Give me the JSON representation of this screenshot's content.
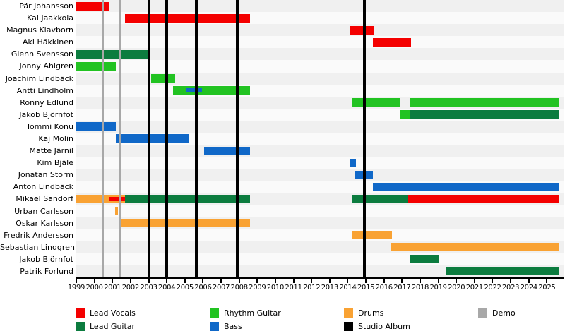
{
  "colors": {
    "lead_vocals": "#f40000",
    "lead_guitar": "#0c7c3f",
    "rhythm_guitar": "#22c322",
    "bass": "#1068c8",
    "drums": "#f9a233",
    "studio_album": "#000000",
    "demo": "#a8a8a8",
    "row_stripe_dark": "#f0f0f0",
    "row_stripe_light": "#fafafa"
  },
  "chart_data": {
    "type": "timeline",
    "x_axis": {
      "min_year": 1999,
      "max_year": 2025.9,
      "tick_years": [
        1999,
        2000,
        2001,
        2002,
        2003,
        2004,
        2005,
        2006,
        2007,
        2008,
        2009,
        2010,
        2011,
        2012,
        2013,
        2014,
        2015,
        2016,
        2017,
        2018,
        2019,
        2020,
        2021,
        2022,
        2023,
        2024,
        2025
      ]
    },
    "rows": [
      {
        "name": "Pär Johansson",
        "segments": [
          {
            "role": "lead_vocals",
            "from": 1999.0,
            "to": 2000.8
          }
        ]
      },
      {
        "name": "Kai Jaakkola",
        "segments": [
          {
            "role": "lead_vocals",
            "from": 2001.7,
            "to": 2008.6
          }
        ]
      },
      {
        "name": "Magnus Klavborn",
        "segments": [
          {
            "role": "lead_vocals",
            "from": 2014.15,
            "to": 2015.45
          }
        ]
      },
      {
        "name": "Aki Häkkinen",
        "segments": [
          {
            "role": "lead_vocals",
            "from": 2015.4,
            "to": 2017.5
          }
        ]
      },
      {
        "name": "Glenn Svensson",
        "segments": [
          {
            "role": "lead_guitar",
            "from": 1999.0,
            "to": 2003.0
          }
        ]
      },
      {
        "name": "Jonny Ahlgren",
        "segments": [
          {
            "role": "rhythm_guitar",
            "from": 1999.0,
            "to": 2001.2
          }
        ]
      },
      {
        "name": "Joachim Lindbäck",
        "segments": [
          {
            "role": "rhythm_guitar",
            "from": 2003.15,
            "to": 2004.45
          }
        ]
      },
      {
        "name": "Antti Lindholm",
        "segments": [
          {
            "role": "rhythm_guitar",
            "from": 2004.35,
            "to": 2008.6
          },
          {
            "role": "bass",
            "from": 2005.1,
            "to": 2005.95,
            "overlay": true
          }
        ]
      },
      {
        "name": "Ronny Edlund",
        "segments": [
          {
            "role": "rhythm_guitar",
            "from": 2014.2,
            "to": 2016.9
          },
          {
            "role": "rhythm_guitar",
            "from": 2017.4,
            "to": 2025.7
          }
        ]
      },
      {
        "name": "Jakob Björnfot",
        "segments": [
          {
            "role": "rhythm_guitar",
            "from": 2016.9,
            "to": 2017.4
          },
          {
            "role": "lead_guitar",
            "from": 2017.4,
            "to": 2025.7
          }
        ]
      },
      {
        "name": "Tommi Konu",
        "segments": [
          {
            "role": "bass",
            "from": 1999.0,
            "to": 2001.2
          }
        ]
      },
      {
        "name": "Kaj Molin",
        "segments": [
          {
            "role": "bass",
            "from": 2001.2,
            "to": 2005.2
          }
        ]
      },
      {
        "name": "Matte Järnil",
        "segments": [
          {
            "role": "bass",
            "from": 2006.05,
            "to": 2008.6
          }
        ]
      },
      {
        "name": "Kim Bjäle",
        "segments": [
          {
            "role": "bass",
            "from": 2014.15,
            "to": 2014.45
          }
        ]
      },
      {
        "name": "Jonatan Storm",
        "segments": [
          {
            "role": "bass",
            "from": 2014.4,
            "to": 2015.4
          }
        ]
      },
      {
        "name": "Anton Lindbäck",
        "segments": [
          {
            "role": "bass",
            "from": 2015.4,
            "to": 2025.7
          }
        ]
      },
      {
        "name": "Mikael Sandorf",
        "segments": [
          {
            "role": "drums",
            "from": 1999.0,
            "to": 2001.7
          },
          {
            "role": "lead_vocals",
            "from": 2000.85,
            "to": 2001.7,
            "overlay": true
          },
          {
            "role": "lead_guitar",
            "from": 2001.7,
            "to": 2008.6
          },
          {
            "role": "lead_guitar",
            "from": 2014.2,
            "to": 2017.35
          },
          {
            "role": "lead_vocals",
            "from": 2017.35,
            "to": 2025.7
          }
        ]
      },
      {
        "name": "Urban Carlsson",
        "segments": [
          {
            "role": "drums",
            "from": 2001.15,
            "to": 2001.3
          }
        ]
      },
      {
        "name": "Oskar Karlsson",
        "segments": [
          {
            "role": "drums",
            "from": 2001.5,
            "to": 2008.6
          }
        ]
      },
      {
        "name": "Fredrik Andersson",
        "segments": [
          {
            "role": "drums",
            "from": 2014.2,
            "to": 2016.45
          }
        ]
      },
      {
        "name": "Sebastian Lindgren",
        "segments": [
          {
            "role": "drums",
            "from": 2016.4,
            "to": 2025.7
          }
        ]
      },
      {
        "name": "Jakob Björnfot",
        "segments": [
          {
            "role": "lead_guitar",
            "from": 2017.4,
            "to": 2019.05
          }
        ]
      },
      {
        "name": "Patrik Forlund",
        "segments": [
          {
            "role": "lead_guitar",
            "from": 2019.45,
            "to": 2025.7
          }
        ]
      }
    ],
    "events": {
      "studio_album_years": [
        2003.0,
        2004.0,
        2005.65,
        2007.9,
        2014.9
      ],
      "demo_years": [
        2000.45,
        2001.4
      ]
    },
    "legend": [
      {
        "label": "Lead Vocals",
        "role": "lead_vocals"
      },
      {
        "label": "Lead Guitar",
        "role": "lead_guitar"
      },
      {
        "label": "Rhythm Guitar",
        "role": "rhythm_guitar"
      },
      {
        "label": "Bass",
        "role": "bass"
      },
      {
        "label": "Drums",
        "role": "drums"
      },
      {
        "label": "Studio Album",
        "role": "studio_album"
      },
      {
        "label": "Demo",
        "role": "demo"
      }
    ]
  }
}
